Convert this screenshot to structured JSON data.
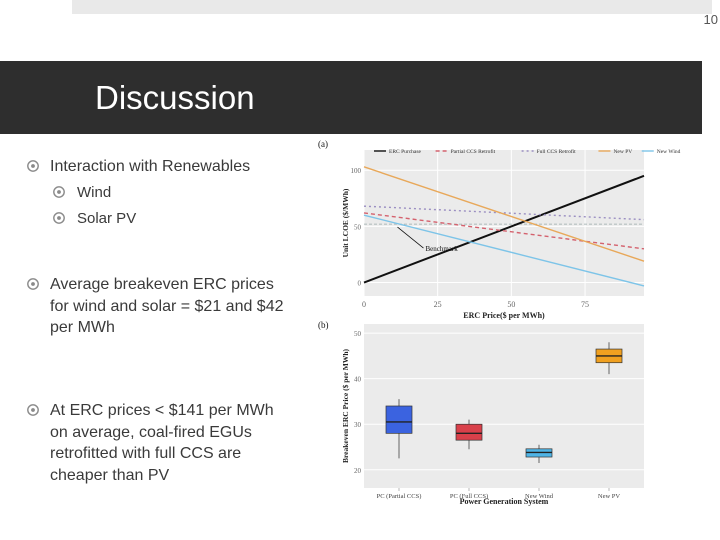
{
  "page_number": "10",
  "title": "Discussion",
  "bullets": [
    {
      "text": "Interaction with Renewables",
      "sub": [
        {
          "text": "Wind"
        },
        {
          "text": "Solar PV"
        }
      ]
    },
    {
      "text": "Average breakeven ERC prices for wind and solar = $21 and $42 per MWh"
    },
    {
      "text": "At ERC prices < $141 per MWh on average, coal-fired EGUs retrofitted with full CCS are cheaper than PV"
    }
  ],
  "bullet_icon": "circled-dot-icon",
  "colors": {
    "title_bar": "#2e2e2e",
    "text": "#3a3a3a",
    "accent": "#808080"
  },
  "chart_data": [
    {
      "panel": "(a)",
      "type": "line",
      "xlabel": "ERC Price($ per MWh)",
      "ylabel": "Unit LCOE ($/MWh)",
      "xticks": [
        0,
        25,
        50,
        75
      ],
      "yticks": [
        0,
        50,
        100
      ],
      "xlim": [
        0,
        95
      ],
      "ylim": [
        -12,
        118
      ],
      "grid": true,
      "legend_placement": "top",
      "series": [
        {
          "name": "ERC Purchase",
          "color": "#111111",
          "dash": "solid",
          "x": [
            0,
            95
          ],
          "y": [
            0,
            95
          ]
        },
        {
          "name": "Partial CCS Retrofit",
          "color": "#d4626e",
          "dash": "4 3",
          "x": [
            0,
            95
          ],
          "y": [
            62,
            30
          ]
        },
        {
          "name": "Full CCS Retrofit",
          "color": "#9b8fc2",
          "dash": "2 3",
          "x": [
            0,
            95
          ],
          "y": [
            68,
            56
          ]
        },
        {
          "name": "New PV",
          "color": "#e8a85a",
          "dash": "solid",
          "x": [
            0,
            95
          ],
          "y": [
            103,
            19
          ]
        },
        {
          "name": "New Wind",
          "color": "#7dc4e8",
          "dash": "solid",
          "x": [
            0,
            95
          ],
          "y": [
            60,
            -3
          ]
        }
      ],
      "benchmark": {
        "label": "Benchmark",
        "y": 52
      }
    },
    {
      "panel": "(b)",
      "type": "box",
      "xlabel": "Power Generation System",
      "ylabel": "Breakeven ERC Price ($ per MWh)",
      "yticks": [
        20,
        30,
        40,
        50
      ],
      "ylim": [
        16,
        52
      ],
      "categories": [
        "PC (Partial CCS)",
        "PC (Full CCS)",
        "New Wind",
        "New PV"
      ],
      "boxes": [
        {
          "min": 22.5,
          "q1": 28,
          "median": 30.5,
          "q3": 34,
          "max": 35.5,
          "color": "#3b63e0"
        },
        {
          "min": 24.5,
          "q1": 26.5,
          "median": 28,
          "q3": 30,
          "max": 31,
          "color": "#d9404a"
        },
        {
          "min": 21.5,
          "q1": 22.8,
          "median": 23.8,
          "q3": 24.6,
          "max": 25.5,
          "color": "#4fb4e6"
        },
        {
          "min": 41,
          "q1": 43.5,
          "median": 45,
          "q3": 46.5,
          "max": 48,
          "color": "#f0a020"
        }
      ]
    }
  ]
}
